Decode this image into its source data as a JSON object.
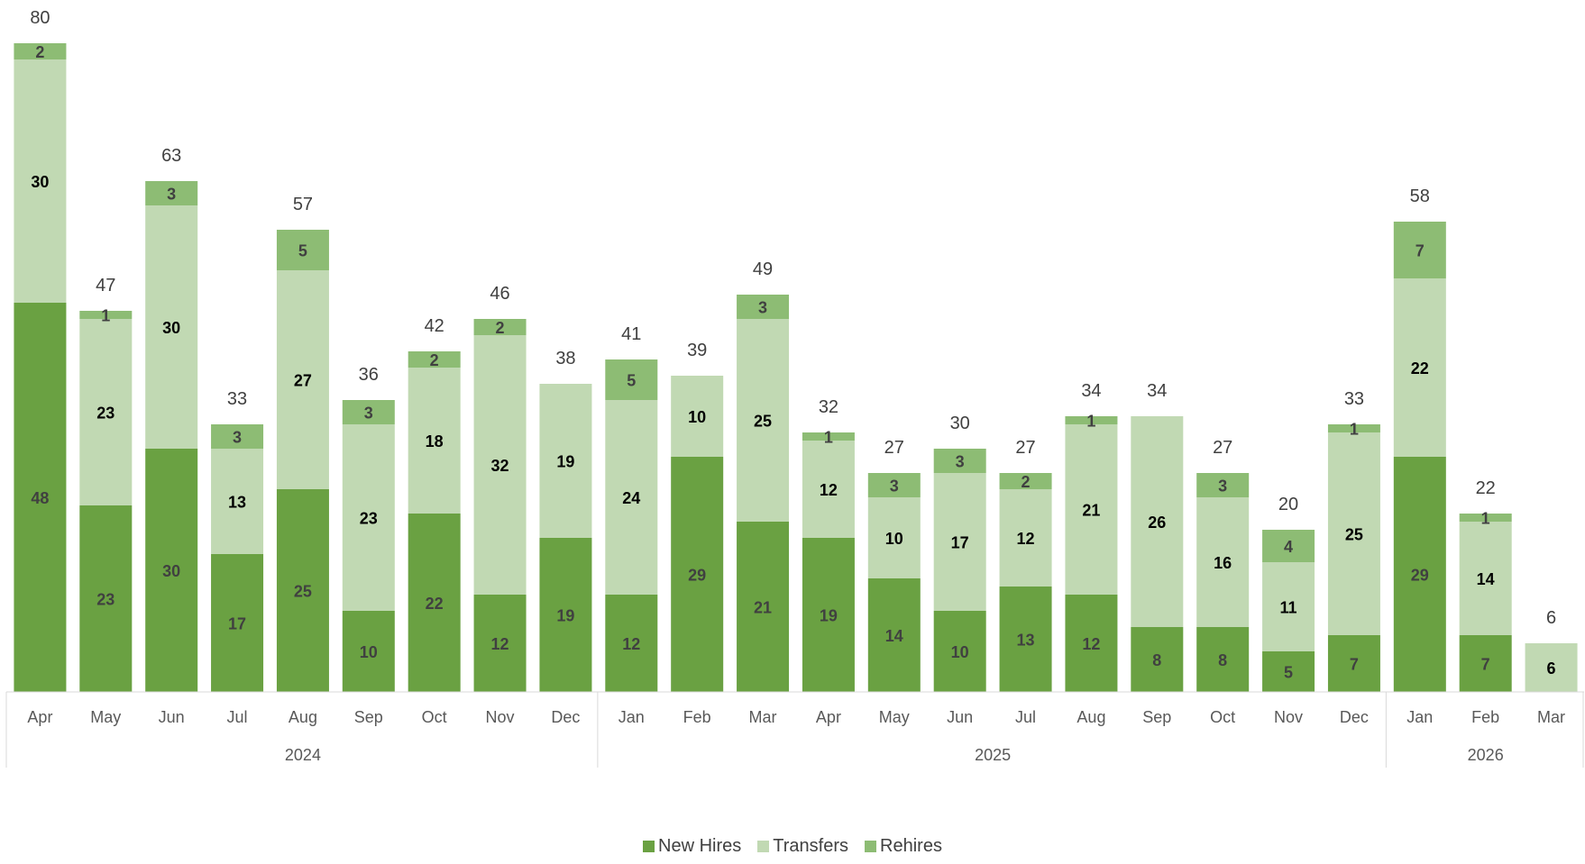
{
  "chart_data": {
    "type": "bar",
    "stacked": true,
    "categories": [
      "Apr",
      "May",
      "Jun",
      "Jul",
      "Aug",
      "Sep",
      "Oct",
      "Nov",
      "Dec",
      "Jan",
      "Feb",
      "Mar",
      "Apr",
      "May",
      "Jun",
      "Jul",
      "Aug",
      "Sep",
      "Oct",
      "Nov",
      "Dec",
      "Jan",
      "Feb",
      "Mar"
    ],
    "groups": [
      {
        "label": "2024",
        "start": 0,
        "end": 8
      },
      {
        "label": "2025",
        "start": 9,
        "end": 20
      },
      {
        "label": "2026",
        "start": 21,
        "end": 23
      }
    ],
    "series": [
      {
        "name": "New Hires",
        "color": "#6aa142",
        "label_color": "#404040",
        "label_bold": true,
        "values": [
          48,
          23,
          30,
          17,
          25,
          10,
          22,
          12,
          19,
          12,
          29,
          21,
          19,
          14,
          10,
          13,
          12,
          8,
          8,
          5,
          7,
          29,
          7,
          0
        ]
      },
      {
        "name": "Transfers",
        "color": "#c1d9b3",
        "label_color": "#000000",
        "label_bold": true,
        "values": [
          30,
          23,
          30,
          13,
          27,
          23,
          18,
          32,
          19,
          24,
          10,
          25,
          12,
          10,
          17,
          12,
          21,
          26,
          16,
          11,
          25,
          22,
          14,
          6
        ]
      },
      {
        "name": "Rehires",
        "color": "#8dbc74",
        "label_color": "#404040",
        "label_bold": true,
        "values": [
          2,
          1,
          3,
          3,
          5,
          3,
          2,
          2,
          0,
          5,
          0,
          3,
          1,
          3,
          3,
          2,
          1,
          0,
          3,
          4,
          1,
          7,
          1,
          0
        ]
      }
    ],
    "totals": [
      80,
      47,
      63,
      33,
      57,
      36,
      42,
      46,
      38,
      41,
      39,
      49,
      32,
      27,
      30,
      27,
      34,
      34,
      27,
      20,
      33,
      58,
      22,
      6
    ],
    "ylim": [
      0,
      80
    ],
    "grid": false,
    "legend_position": "bottom"
  }
}
